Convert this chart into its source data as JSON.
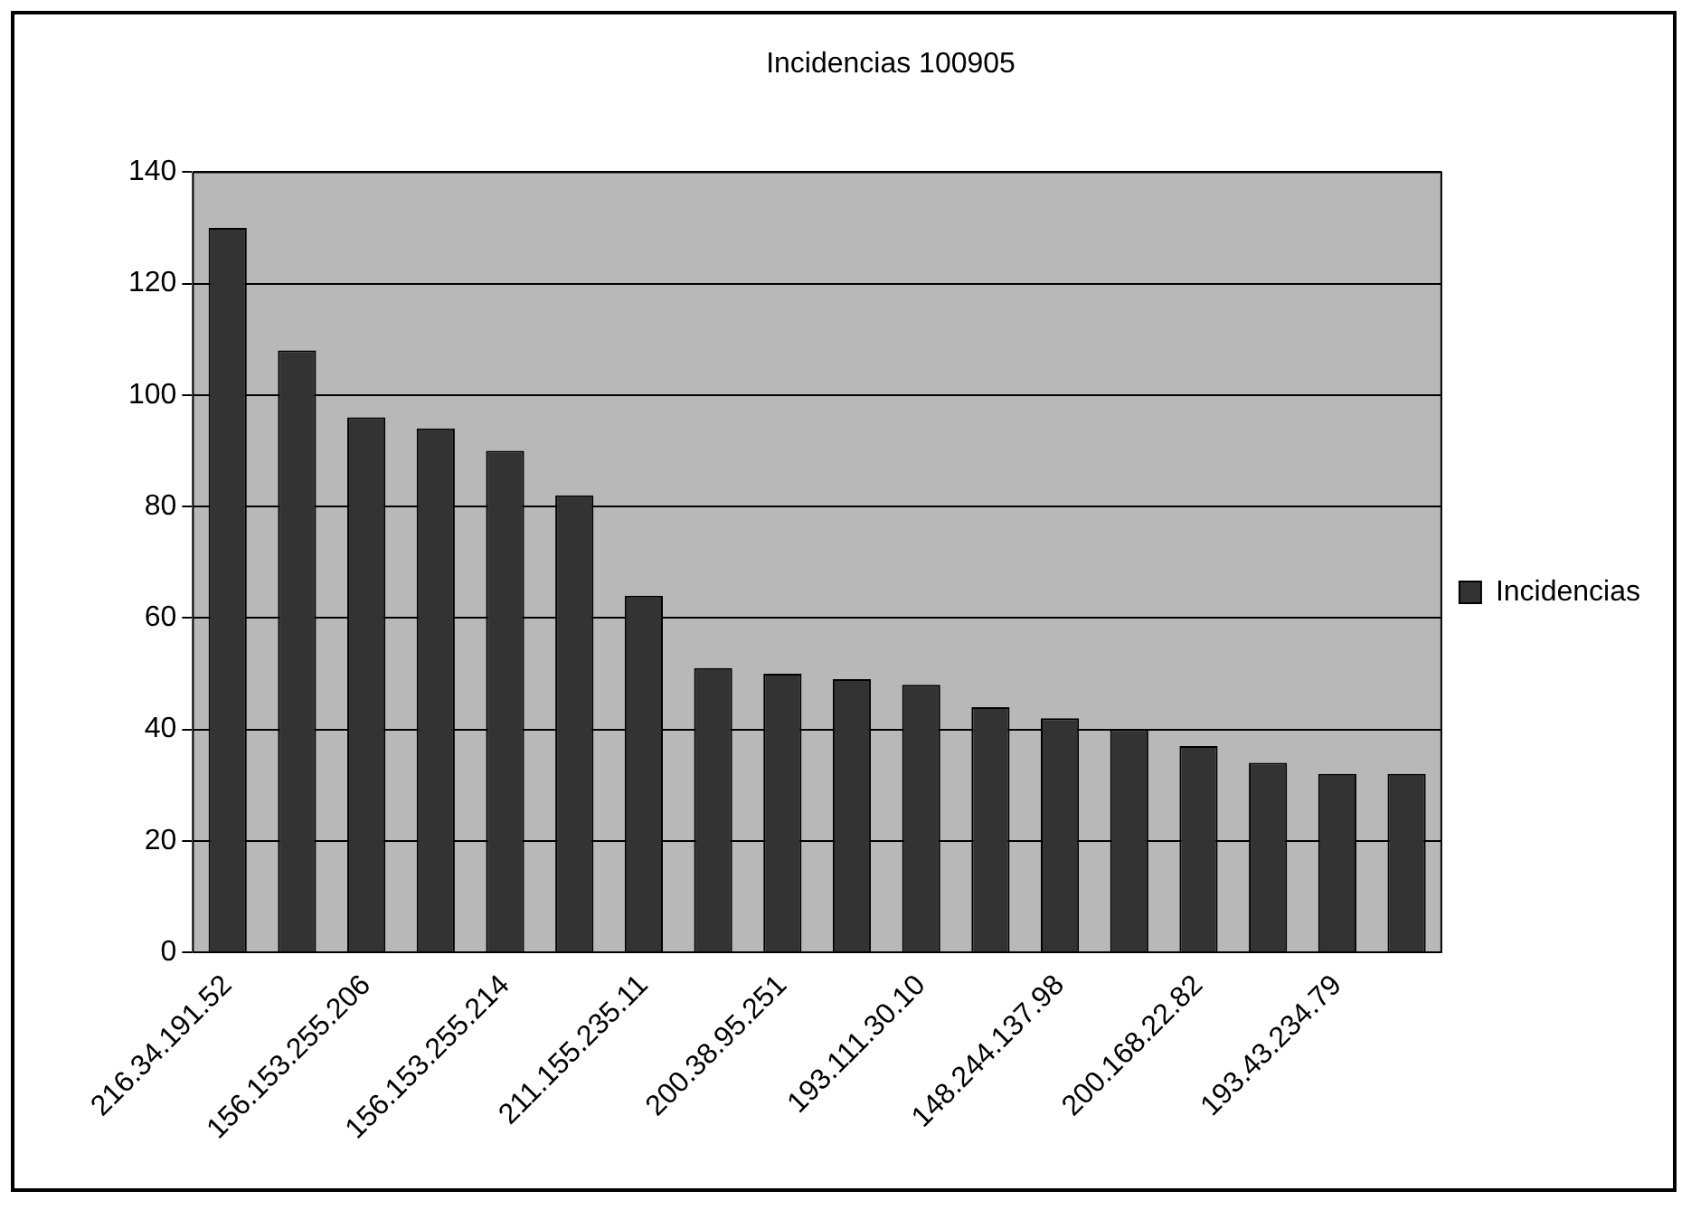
{
  "chart_data": {
    "type": "bar",
    "title": "Incidencias 100905",
    "categories": [
      "216.34.191.52",
      null,
      "156.153.255.206",
      null,
      "156.153.255.214",
      null,
      "211.155.235.11",
      null,
      "200.38.95.251",
      null,
      "193.111.30.10",
      null,
      "148.244.137.98",
      null,
      "200.168.22.82",
      null,
      "193.43.234.79",
      null
    ],
    "series": [
      {
        "name": "Incidencias",
        "color": "#333333",
        "values": [
          130,
          108,
          96,
          94,
          90,
          82,
          64,
          51,
          50,
          49,
          48,
          44,
          42,
          40,
          37,
          34,
          32,
          32
        ]
      }
    ],
    "ylim": [
      0,
      140
    ],
    "yticks": [
      0,
      20,
      40,
      60,
      80,
      100,
      120,
      140
    ],
    "grid": "y",
    "legend": "right"
  }
}
